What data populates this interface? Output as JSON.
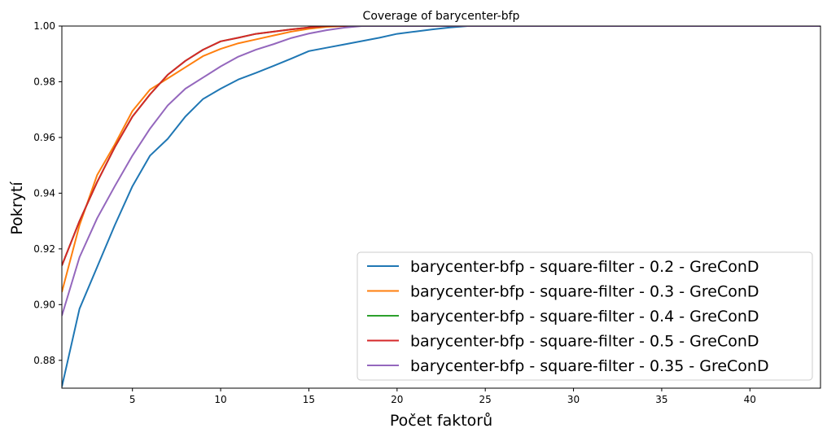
{
  "chart_data": {
    "type": "line",
    "title": "Coverage of barycenter-bfp",
    "xlabel": "Počet faktorů",
    "ylabel": "Pokrytí",
    "xlim": [
      1,
      44
    ],
    "ylim": [
      0.87,
      1.0
    ],
    "xticks": [
      5,
      10,
      15,
      20,
      25,
      30,
      35,
      40
    ],
    "yticks": [
      0.88,
      0.9,
      0.92,
      0.94,
      0.96,
      0.98,
      1.0
    ],
    "ytick_labels": [
      "0.88",
      "0.90",
      "0.92",
      "0.94",
      "0.96",
      "0.98",
      "1.00"
    ],
    "grid": false,
    "legend_position": "lower-right",
    "series": [
      {
        "name": "barycenter-bfp - square-filter - 0.2 - GreConD",
        "color": "#1f77b4",
        "x": [
          1,
          2,
          3,
          4,
          5,
          6,
          7,
          8,
          9,
          10,
          11,
          12,
          13,
          14,
          15,
          16,
          17,
          18,
          19,
          20,
          21,
          22,
          23,
          24,
          44
        ],
        "y": [
          0.8705,
          0.8985,
          0.9135,
          0.9285,
          0.9425,
          0.9535,
          0.9595,
          0.9675,
          0.9738,
          0.9775,
          0.9808,
          0.9832,
          0.9857,
          0.9883,
          0.991,
          0.9922,
          0.9934,
          0.9946,
          0.9958,
          0.9972,
          0.998,
          0.9988,
          0.9995,
          1.0,
          1.0
        ]
      },
      {
        "name": "barycenter-bfp - square-filter - 0.3 - GreConD",
        "color": "#ff7f0e",
        "x": [
          1,
          2,
          3,
          4,
          5,
          6,
          7,
          8,
          9,
          10,
          11,
          12,
          13,
          14,
          15,
          16,
          17,
          44
        ],
        "y": [
          0.9045,
          0.9285,
          0.9465,
          0.9575,
          0.9695,
          0.9772,
          0.9812,
          0.9852,
          0.9892,
          0.9918,
          0.9938,
          0.9952,
          0.9966,
          0.998,
          0.999,
          0.9997,
          1.0,
          1.0
        ]
      },
      {
        "name": "barycenter-bfp - square-filter - 0.4 - GreConD",
        "color": "#2ca02c",
        "x": [
          1,
          2,
          3,
          4,
          5,
          6,
          7,
          8,
          9,
          10,
          11,
          12,
          13,
          14,
          15,
          16,
          44
        ],
        "y": [
          0.914,
          0.93,
          0.944,
          0.9565,
          0.9675,
          0.9755,
          0.9825,
          0.9875,
          0.9915,
          0.9945,
          0.9958,
          0.9972,
          0.998,
          0.9988,
          0.9995,
          1.0,
          1.0
        ]
      },
      {
        "name": "barycenter-bfp - square-filter - 0.5 - GreConD",
        "color": "#d62728",
        "x": [
          1,
          2,
          3,
          4,
          5,
          6,
          7,
          8,
          9,
          10,
          11,
          12,
          13,
          14,
          15,
          16,
          44
        ],
        "y": [
          0.914,
          0.93,
          0.944,
          0.9565,
          0.9675,
          0.9755,
          0.9825,
          0.9875,
          0.9915,
          0.9945,
          0.9958,
          0.9972,
          0.998,
          0.9988,
          0.9995,
          1.0,
          1.0
        ]
      },
      {
        "name": "barycenter-bfp - square-filter - 0.35 - GreConD",
        "color": "#9467bd",
        "x": [
          1,
          2,
          3,
          4,
          5,
          6,
          7,
          8,
          9,
          10,
          11,
          12,
          13,
          14,
          15,
          16,
          17,
          18,
          44
        ],
        "y": [
          0.896,
          0.917,
          0.931,
          0.9425,
          0.9535,
          0.9632,
          0.9715,
          0.9775,
          0.9815,
          0.9855,
          0.989,
          0.9915,
          0.9935,
          0.9957,
          0.9973,
          0.9985,
          0.9994,
          1.0,
          1.0
        ]
      }
    ]
  }
}
